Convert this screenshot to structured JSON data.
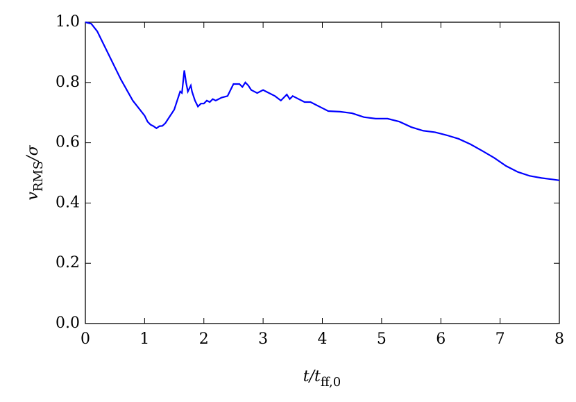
{
  "chart_data": {
    "type": "line",
    "xlabel": [
      "t/t",
      "ff,0"
    ],
    "ylabel": [
      "v",
      "RMS",
      "/σ"
    ],
    "xlim": [
      0,
      8
    ],
    "xticks": [
      0,
      1,
      2,
      3,
      4,
      5,
      6,
      7,
      8
    ],
    "ylim": [
      0,
      1
    ],
    "yticks": [
      {
        "value": 0,
        "label": "0.0"
      },
      0.2,
      0.4,
      0.6,
      0.8,
      {
        "value": 1,
        "label": "1.0"
      }
    ],
    "series": [
      {
        "color": "#0000ff",
        "x": [
          0,
          0.1,
          0.2,
          0.3,
          0.4,
          0.5,
          0.6,
          0.7,
          0.8,
          0.9,
          1.0,
          1.05,
          1.1,
          1.15,
          1.2,
          1.25,
          1.3,
          1.35,
          1.4,
          1.45,
          1.5,
          1.55,
          1.6,
          1.63,
          1.67,
          1.7,
          1.73,
          1.78,
          1.8,
          1.85,
          1.9,
          1.95,
          2.0,
          2.05,
          2.1,
          2.15,
          2.2,
          2.3,
          2.4,
          2.5,
          2.6,
          2.65,
          2.7,
          2.75,
          2.8,
          2.85,
          2.9,
          3.0,
          3.1,
          3.2,
          3.3,
          3.4,
          3.45,
          3.5,
          3.6,
          3.7,
          3.8,
          3.9,
          4.0,
          4.1,
          4.3,
          4.5,
          4.7,
          4.9,
          5.1,
          5.3,
          5.5,
          5.7,
          5.9,
          6.1,
          6.3,
          6.5,
          6.7,
          6.9,
          7.1,
          7.3,
          7.5,
          7.7,
          7.9,
          8.0
        ],
        "values": [
          1.0,
          0.995,
          0.97,
          0.93,
          0.89,
          0.85,
          0.81,
          0.775,
          0.74,
          0.715,
          0.69,
          0.67,
          0.66,
          0.655,
          0.648,
          0.655,
          0.656,
          0.665,
          0.68,
          0.695,
          0.71,
          0.74,
          0.77,
          0.765,
          0.84,
          0.8,
          0.77,
          0.79,
          0.77,
          0.74,
          0.72,
          0.73,
          0.73,
          0.74,
          0.735,
          0.745,
          0.74,
          0.75,
          0.755,
          0.795,
          0.795,
          0.785,
          0.8,
          0.79,
          0.775,
          0.77,
          0.765,
          0.775,
          0.765,
          0.755,
          0.74,
          0.76,
          0.745,
          0.755,
          0.745,
          0.735,
          0.735,
          0.725,
          0.715,
          0.705,
          0.703,
          0.698,
          0.685,
          0.68,
          0.68,
          0.67,
          0.652,
          0.64,
          0.635,
          0.625,
          0.613,
          0.595,
          0.573,
          0.55,
          0.523,
          0.503,
          0.49,
          0.483,
          0.478,
          0.475
        ]
      }
    ]
  }
}
